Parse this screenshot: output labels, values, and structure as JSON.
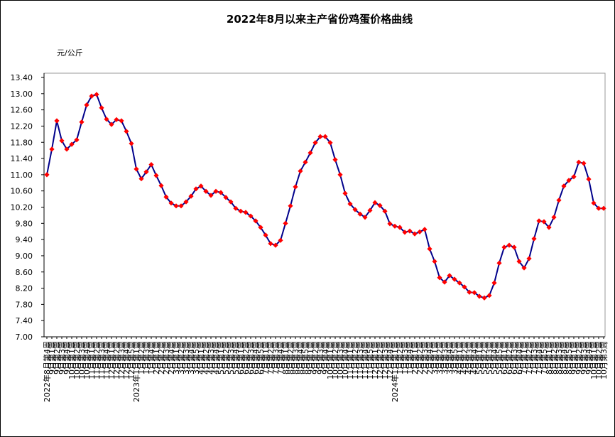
{
  "chart_data": {
    "type": "line",
    "title": "2022年8月以来主产省份鸡蛋价格曲线",
    "y_label": "元/公斤",
    "ylim": [
      7.0,
      13.4
    ],
    "yticks": [
      {
        "value": 7.0,
        "label": "7.00"
      },
      {
        "value": 7.4,
        "label": "7.40"
      },
      {
        "value": 7.8,
        "label": "7.80"
      },
      {
        "value": 8.2,
        "label": "8.20"
      },
      {
        "value": 8.6,
        "label": "8.60"
      },
      {
        "value": 9.0,
        "label": "9.00"
      },
      {
        "value": 9.4,
        "label": "9.40"
      },
      {
        "value": 9.8,
        "label": "9.80"
      },
      {
        "value": 10.2,
        "label": "10.20"
      },
      {
        "value": 10.6,
        "label": "10.60"
      },
      {
        "value": 11.0,
        "label": "11.00"
      },
      {
        "value": 11.4,
        "label": "11.40"
      },
      {
        "value": 11.8,
        "label": "11.80"
      },
      {
        "value": 12.2,
        "label": "12.20"
      },
      {
        "value": 12.6,
        "label": "12.60"
      },
      {
        "value": 13.0,
        "label": "13.00"
      },
      {
        "value": 13.4,
        "label": "13.40"
      }
    ],
    "grid": false,
    "categories": [
      "2022年8月第4周",
      "9月第1周",
      "9月第2周",
      "9月第3周",
      "9月第4周",
      "10月第1周",
      "10月第2周",
      "10月第3周",
      "10月第4周",
      "11月第1周",
      "11月第2周",
      "11月第3周",
      "11月第4周",
      "12月第1周",
      "12月第2周",
      "12月第3周",
      "12月第4周",
      "12月第5周",
      "2023年1月第1周",
      "1月第2周",
      "1月第3周",
      "1月第4周",
      "2月第1周",
      "2月第2周",
      "2月第3周",
      "2月第4周",
      "3月第1周",
      "3月第2周",
      "3月第3周",
      "3月第4周",
      "3月第5周",
      "4月第1周",
      "4月第2周",
      "4月第3周",
      "4月第4周",
      "5月第1周",
      "5月第2周",
      "5月第3周",
      "5月第4周",
      "6月第1周",
      "6月第2周",
      "6月第3周",
      "6月第4周",
      "6月第5周",
      "7月第1周",
      "7月第2周",
      "7月第3周",
      "7月第4周",
      "8月第1周",
      "8月第2周",
      "8月第3周",
      "8月第4周",
      "8月第5周",
      "9月第1周",
      "9月第2周",
      "9月第3周",
      "9月第4周",
      "10月第1周",
      "10月第2周",
      "10月第3周",
      "10月第4周",
      "11月第1周",
      "11月第2周",
      "11月第3周",
      "11月第4周",
      "11月第5周",
      "12月第1周",
      "12月第2周",
      "12月第3周",
      "12月第4周",
      "2024年1月第1周",
      "1月第2周",
      "1月第3周",
      "1月第4周",
      "2月第1周",
      "2月第2周",
      "2月第3周",
      "2月第4周",
      "3月第1周",
      "3月第2周",
      "3月第3周",
      "3月第4周",
      "3月第5周",
      "4月第1周",
      "4月第2周",
      "4月第3周",
      "4月第4周",
      "5月第1周",
      "5月第2周",
      "5月第3周",
      "5月第4周",
      "5月第5周",
      "6月第1周",
      "6月第2周",
      "6月第3周",
      "6月第4周",
      "7月第1周",
      "7月第2周",
      "7月第3周",
      "7月第4周",
      "7月第5周",
      "8月第1周",
      "8月第2周",
      "8月第3周",
      "8月第4周",
      "8月第5周",
      "9月第1周",
      "9月第2周",
      "9月第3周",
      "9月第4周",
      "10月第1周",
      "10月第2周",
      "10月第3周"
    ],
    "series": [
      {
        "color": "#00008b",
        "marker_color": "#ff0000",
        "values": [
          11.0,
          11.63,
          12.33,
          11.84,
          11.63,
          11.75,
          11.86,
          12.3,
          12.72,
          12.94,
          12.98,
          12.65,
          12.37,
          12.24,
          12.36,
          12.33,
          12.07,
          11.77,
          11.14,
          10.9,
          11.07,
          11.25,
          10.98,
          10.73,
          10.45,
          10.3,
          10.23,
          10.23,
          10.33,
          10.47,
          10.65,
          10.72,
          10.59,
          10.49,
          10.59,
          10.56,
          10.44,
          10.33,
          10.17,
          10.1,
          10.07,
          9.98,
          9.86,
          9.7,
          9.51,
          9.3,
          9.26,
          9.38,
          9.8,
          10.23,
          10.7,
          11.09,
          11.31,
          11.54,
          11.79,
          11.94,
          11.94,
          11.79,
          11.37,
          11.0,
          10.54,
          10.28,
          10.14,
          10.03,
          9.95,
          10.12,
          10.31,
          10.24,
          10.1,
          9.79,
          9.73,
          9.7,
          9.58,
          9.61,
          9.54,
          9.59,
          9.65,
          9.17,
          8.86,
          8.46,
          8.35,
          8.51,
          8.42,
          8.33,
          8.23,
          8.1,
          8.09,
          8.0,
          7.96,
          8.02,
          8.33,
          8.82,
          9.21,
          9.26,
          9.21,
          8.86,
          8.7,
          8.93,
          9.42,
          9.86,
          9.84,
          9.7,
          9.95,
          10.37,
          10.72,
          10.86,
          10.95,
          11.31,
          11.28,
          10.89,
          10.3,
          10.17,
          10.17
        ]
      }
    ]
  }
}
